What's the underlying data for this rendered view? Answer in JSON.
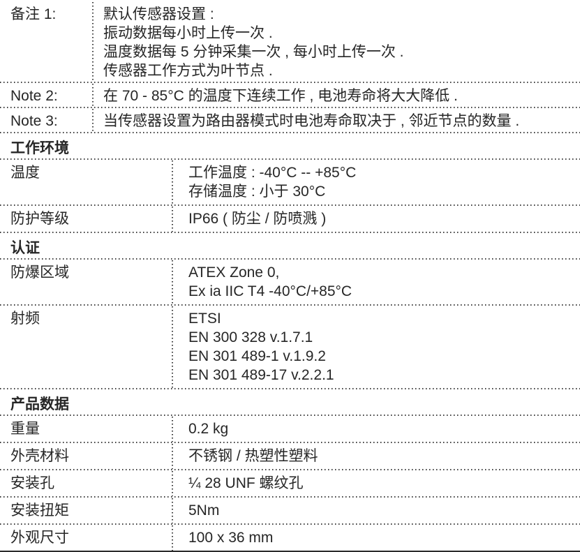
{
  "page": {
    "background": "#ffffff",
    "text_color": "#262626",
    "rule_color": "#3c3c3c",
    "bottom_rule_color": "#2b2b2b"
  },
  "notes": [
    {
      "label": "备注 1:",
      "lines": [
        "默认传感器设置 :",
        "振动数据每小时上传一次 .",
        "温度数据每 5 分钟采集一次 , 每小时上传一次 .",
        "传感器工作方式为叶节点 ."
      ]
    },
    {
      "label": "Note 2:",
      "lines": [
        "在 70 - 85°C 的温度下连续工作 , 电池寿命将大大降低 ."
      ]
    },
    {
      "label": "Note 3:",
      "lines": [
        "当传感器设置为路由器模式时电池寿命取决于 , 邻近节点的数量 ."
      ]
    }
  ],
  "sections": [
    {
      "title": "工作环境",
      "rows": [
        {
          "label": "温度",
          "lines": [
            "工作温度 : -40°C -- +85°C",
            "存储温度 : 小于 30°C"
          ]
        },
        {
          "label": "防护等级",
          "lines": [
            "IP66 ( 防尘 / 防喷溅 )"
          ]
        }
      ]
    },
    {
      "title": "认证",
      "rows": [
        {
          "label": "防爆区域",
          "lines": [
            "ATEX Zone 0,",
            "Ex ia IIC T4 -40°C/+85°C"
          ]
        },
        {
          "label": "射频",
          "lines": [
            "ETSI",
            "EN 300 328 v.1.7.1",
            "EN 301 489-1 v.1.9.2",
            "EN 301 489-17 v.2.2.1"
          ]
        }
      ]
    },
    {
      "title": "产品数据",
      "rows": [
        {
          "label": "重量",
          "lines": [
            "0.2 kg"
          ]
        },
        {
          "label": "外壳材料",
          "lines": [
            "不锈钢 / 热塑性塑料"
          ]
        },
        {
          "label": "安装孔",
          "lines": [
            "¼ 28 UNF 螺纹孔"
          ]
        },
        {
          "label": "安装扭矩",
          "lines": [
            "5Nm"
          ]
        },
        {
          "label": "外观尺寸",
          "lines": [
            "100 x 36 mm"
          ]
        }
      ]
    }
  ]
}
